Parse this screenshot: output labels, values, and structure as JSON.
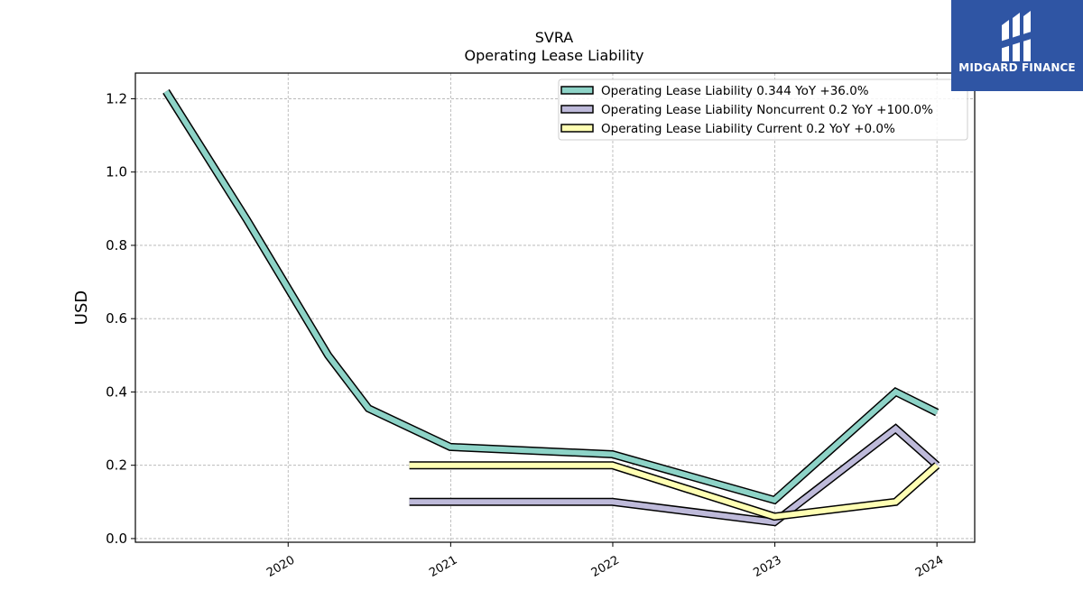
{
  "chart_data": {
    "type": "line",
    "title": "SVRA",
    "subtitle": "Operating Lease Liability",
    "ylabel": "USD",
    "xlabel": "",
    "ylim": [
      -0.01,
      1.27
    ],
    "xlim": [
      "2019-01-22",
      "2024-03-26"
    ],
    "y_ticks": [
      0.0,
      0.2,
      0.4,
      0.6,
      0.8,
      1.0,
      1.2
    ],
    "y_tick_labels": [
      "0.0",
      "0.2",
      "0.4",
      "0.6",
      "0.8",
      "1.0",
      "1.2"
    ],
    "x_ticks": [
      "2020-01-01",
      "2021-01-01",
      "2022-01-01",
      "2023-01-01",
      "2024-01-01"
    ],
    "x_tick_labels": [
      "2020",
      "2021",
      "2022",
      "2023",
      "2024"
    ],
    "grid": true,
    "legend_position": "top-right",
    "series": [
      {
        "name": "Operating Lease Liability",
        "legend_label": "Operating Lease Liability  0.344 YoY +36.0%",
        "color": "#8dd3c7",
        "points": [
          [
            "2019-04-01",
            1.22
          ],
          [
            "2019-09-30",
            0.87
          ],
          [
            "2020-03-31",
            0.5
          ],
          [
            "2020-06-30",
            0.355
          ],
          [
            "2020-12-31",
            0.25
          ],
          [
            "2021-12-31",
            0.23
          ],
          [
            "2022-12-31",
            0.105
          ],
          [
            "2023-09-30",
            0.4
          ],
          [
            "2024-01-01",
            0.344
          ]
        ]
      },
      {
        "name": "Operating Lease Liability Noncurrent",
        "legend_label": "Operating Lease Liability Noncurrent  0.2 YoY +100.0%",
        "color": "#bebada",
        "points": [
          [
            "2020-09-30",
            0.1
          ],
          [
            "2021-12-31",
            0.1
          ],
          [
            "2022-12-31",
            0.045
          ],
          [
            "2023-09-30",
            0.3
          ],
          [
            "2024-01-01",
            0.2
          ]
        ]
      },
      {
        "name": "Operating Lease Liability Current",
        "legend_label": "Operating Lease Liability Current  0.2 YoY +0.0%",
        "color": "#ffffb3",
        "points": [
          [
            "2020-09-30",
            0.2
          ],
          [
            "2021-12-31",
            0.2
          ],
          [
            "2022-12-31",
            0.06
          ],
          [
            "2023-09-30",
            0.1
          ],
          [
            "2024-01-01",
            0.2
          ]
        ]
      }
    ]
  },
  "logo": {
    "text": "MIDGARD FINANCE",
    "background": "#2f55a4",
    "icon": "midgard-logo-icon"
  }
}
